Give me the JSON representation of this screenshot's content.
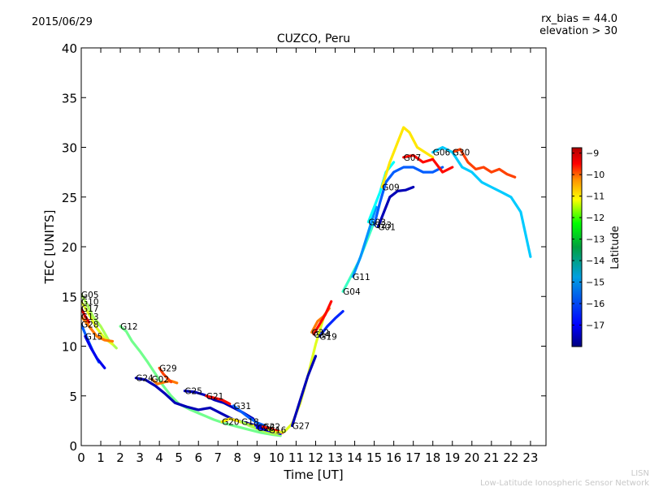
{
  "header": {
    "date": "2015/06/29",
    "rx_bias": "rx_bias = 44.0",
    "elevation": "elevation > 30"
  },
  "footer": {
    "org_short": "LISN",
    "org_long": "Low-Latitude Ionospheric Sensor Network"
  },
  "chart_data": {
    "type": "line",
    "title": "CUZCO, Peru",
    "xlabel": "Time [UT]",
    "ylabel": "TEC [UNITS]",
    "xlim": [
      0,
      24
    ],
    "ylim": [
      0,
      40
    ],
    "xticks": [
      "0",
      "1",
      "2",
      "3",
      "4",
      "5",
      "6",
      "7",
      "8",
      "9",
      "10",
      "11",
      "12",
      "13",
      "14",
      "15",
      "16",
      "17",
      "18",
      "19",
      "20",
      "21",
      "22",
      "23"
    ],
    "yticks": [
      "0",
      "5",
      "10",
      "15",
      "20",
      "25",
      "30",
      "35",
      "40"
    ],
    "colorbar": {
      "label": "Latitude",
      "range": [
        -18,
        -8.75
      ],
      "ticks": [
        "−9",
        "−10",
        "−11",
        "−12",
        "−13",
        "−14",
        "−15",
        "−16",
        "−17"
      ],
      "colormap": [
        "#00007f",
        "#0000ff",
        "#007fff",
        "#00ffff",
        "#7fff7f",
        "#ffff00",
        "#ff7f00",
        "#ff0000",
        "#7f0000"
      ]
    },
    "series": [
      {
        "name": "G05",
        "lat": -13.0,
        "x": [
          0,
          0.3,
          0.6,
          1.0,
          1.4,
          1.8
        ],
        "y": [
          15.2,
          14.2,
          13.0,
          12.0,
          10.6,
          9.8
        ]
      },
      {
        "name": "G10",
        "lat": -12.5,
        "x": [
          0,
          0.4,
          0.8,
          1.2,
          1.6
        ],
        "y": [
          14.5,
          13.2,
          11.8,
          10.8,
          10.2
        ]
      },
      {
        "name": "G17",
        "lat": -9.5,
        "x": [
          0,
          0.2,
          0.4
        ],
        "y": [
          13.8,
          13.0,
          12.4
        ]
      },
      {
        "name": "G13",
        "lat": -11.0,
        "x": [
          0,
          0.4,
          0.8,
          1.2,
          1.6
        ],
        "y": [
          13.0,
          12.0,
          11.0,
          10.6,
          10.5
        ]
      },
      {
        "name": "G28",
        "lat": -16.0,
        "x": [
          0,
          0.3,
          0.6,
          0.9
        ],
        "y": [
          12.2,
          10.8,
          9.5,
          8.4
        ]
      },
      {
        "name": "G15",
        "lat": -17.0,
        "x": [
          0.2,
          0.5,
          0.8,
          1.2
        ],
        "y": [
          11.0,
          9.8,
          8.8,
          7.8
        ]
      },
      {
        "name": "G12",
        "lat": -13.5,
        "x": [
          2.0,
          2.3,
          2.6,
          3.0,
          3.4,
          3.8,
          4.2,
          4.6,
          5.0,
          5.6,
          6.2,
          6.8,
          7.4,
          8.0,
          8.6,
          9.2,
          9.8,
          10.2
        ],
        "y": [
          12.0,
          11.5,
          10.5,
          9.5,
          8.4,
          7.2,
          6.0,
          5.0,
          4.2,
          3.6,
          3.1,
          2.6,
          2.2,
          1.9,
          1.6,
          1.3,
          1.1,
          1.0
        ]
      },
      {
        "name": "G24",
        "lat": -17.5,
        "x": [
          2.8,
          3.3,
          3.8,
          4.3,
          4.8,
          5.4,
          6.0,
          6.6,
          7.2,
          7.8,
          8.4,
          9.0,
          9.5
        ],
        "y": [
          6.8,
          6.6,
          6.0,
          5.2,
          4.3,
          3.9,
          3.6,
          3.8,
          3.2,
          2.6,
          2.3,
          2.0,
          1.8
        ]
      },
      {
        "name": "G02",
        "lat": -11.0,
        "x": [
          3.6,
          3.9,
          4.3,
          4.6,
          4.9
        ],
        "y": [
          6.7,
          6.2,
          6.4,
          6.5,
          6.3
        ]
      },
      {
        "name": "G29",
        "lat": -10.5,
        "x": [
          4.0,
          4.2,
          4.4,
          4.6
        ],
        "y": [
          7.8,
          7.2,
          6.8,
          6.4
        ]
      },
      {
        "name": "G25",
        "lat": -17.5,
        "x": [
          5.3,
          5.8,
          6.3,
          6.8,
          7.3,
          7.8,
          8.3,
          8.8
        ],
        "y": [
          5.5,
          5.4,
          5.1,
          4.6,
          4.3,
          3.8,
          3.3,
          2.7
        ]
      },
      {
        "name": "G21",
        "lat": -10.0,
        "x": [
          6.4,
          6.8,
          7.2,
          7.6
        ],
        "y": [
          5.0,
          4.8,
          4.6,
          4.2
        ]
      },
      {
        "name": "G31",
        "lat": -16.0,
        "x": [
          7.8,
          8.2,
          8.6,
          9.0,
          9.4
        ],
        "y": [
          4.0,
          3.4,
          2.8,
          2.3,
          2.0
        ]
      },
      {
        "name": "G20",
        "lat": -12.0,
        "x": [
          7.2,
          7.6,
          8.0,
          8.4,
          8.8
        ],
        "y": [
          2.4,
          2.7,
          2.5,
          2.2,
          2.0
        ]
      },
      {
        "name": "G18",
        "lat": -13.0,
        "x": [
          8.2,
          8.6,
          9.0,
          9.4,
          9.8,
          10.2
        ],
        "y": [
          2.4,
          2.0,
          1.7,
          1.4,
          1.2,
          1.1
        ]
      },
      {
        "name": "G26",
        "lat": -17.0,
        "x": [
          9.0,
          9.4,
          9.8,
          10.2
        ],
        "y": [
          1.8,
          1.6,
          1.4,
          1.2
        ]
      },
      {
        "name": "G22",
        "lat": -10.0,
        "x": [
          9.3,
          9.7,
          10.0,
          10.3
        ],
        "y": [
          1.9,
          1.7,
          1.5,
          1.3
        ]
      },
      {
        "name": "G16",
        "lat": -12.5,
        "x": [
          9.6,
          10.0,
          10.4,
          10.8,
          11.2,
          11.6,
          12.0,
          12.4
        ],
        "y": [
          1.6,
          1.3,
          1.4,
          2.2,
          4.2,
          7.0,
          10.2,
          12.8
        ]
      },
      {
        "name": "G27",
        "lat": -17.5,
        "x": [
          10.8,
          11.2,
          11.6,
          12.0
        ],
        "y": [
          2.0,
          4.5,
          7.0,
          9.0
        ]
      },
      {
        "name": "G32",
        "lat": -11.0,
        "x": [
          11.8,
          12.1,
          12.4,
          12.7
        ],
        "y": [
          11.4,
          12.5,
          13.0,
          13.8
        ]
      },
      {
        "name": "G14",
        "lat": -10.0,
        "x": [
          11.9,
          12.2,
          12.5,
          12.8
        ],
        "y": [
          11.2,
          12.2,
          13.2,
          14.5
        ]
      },
      {
        "name": "G19",
        "lat": -16.5,
        "x": [
          12.2,
          12.6,
          13.0,
          13.4
        ],
        "y": [
          11.0,
          12.0,
          12.8,
          13.5
        ]
      },
      {
        "name": "G04",
        "lat": -14.0,
        "x": [
          13.4,
          13.8,
          14.2,
          14.6,
          15.0
        ],
        "y": [
          15.5,
          17.0,
          18.5,
          20.5,
          22.5
        ]
      },
      {
        "name": "G11",
        "lat": -15.5,
        "x": [
          13.9,
          14.3,
          14.7,
          15.1
        ],
        "y": [
          17.0,
          19.0,
          21.5,
          24.0
        ]
      },
      {
        "name": "G03",
        "lat": -14.5,
        "x": [
          14.7,
          15.0,
          15.3,
          15.6,
          16.0
        ],
        "y": [
          22.5,
          24.0,
          25.5,
          27.5,
          28.5
        ]
      },
      {
        "name": "G23",
        "lat": -16.0,
        "x": [
          15.0,
          15.3,
          15.6,
          16.0,
          16.5,
          17.0,
          17.5,
          18.0,
          18.5
        ],
        "y": [
          22.2,
          24.5,
          26.5,
          27.5,
          28.0,
          28.0,
          27.5,
          27.5,
          28.0
        ]
      },
      {
        "name": "G01",
        "lat": -17.5,
        "x": [
          15.2,
          15.5,
          15.8,
          16.2,
          16.6,
          17.0
        ],
        "y": [
          22.0,
          23.5,
          25.0,
          25.6,
          25.7,
          26.0
        ]
      },
      {
        "name": "G09",
        "lat": -12.0,
        "x": [
          15.4,
          15.8,
          16.2,
          16.5,
          16.8,
          17.2,
          17.6,
          18.0
        ],
        "y": [
          26.0,
          28.5,
          30.5,
          32.0,
          31.5,
          30.0,
          29.5,
          29.0
        ]
      },
      {
        "name": "G07",
        "lat": -10.0,
        "x": [
          16.5,
          17.0,
          17.5,
          18.0,
          18.5,
          19.0
        ],
        "y": [
          29.0,
          29.2,
          28.5,
          28.8,
          27.5,
          28.0
        ]
      },
      {
        "name": "G30",
        "lat": -10.5,
        "x": [
          19.0,
          19.4,
          19.8,
          20.2,
          20.6,
          21.0,
          21.4,
          21.8,
          22.2
        ],
        "y": [
          29.5,
          29.8,
          28.5,
          27.8,
          28.0,
          27.5,
          27.8,
          27.3,
          27.0
        ]
      },
      {
        "name": "G06",
        "lat": -15.0,
        "x": [
          18.0,
          18.5,
          19.0,
          19.5,
          20.0,
          20.5,
          21.0,
          21.5,
          22.0,
          22.5,
          23.0
        ],
        "y": [
          29.5,
          30.0,
          29.5,
          28.0,
          27.5,
          26.5,
          26.0,
          25.5,
          25.0,
          23.5,
          19.0
        ]
      }
    ]
  }
}
